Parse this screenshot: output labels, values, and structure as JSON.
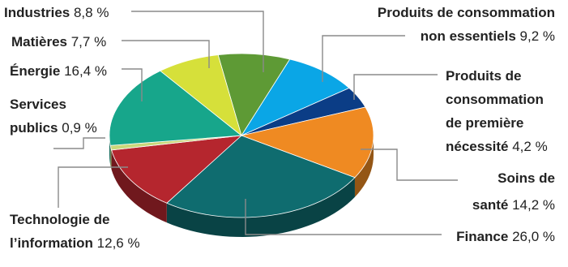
{
  "chart_data": {
    "type": "pie",
    "title": "",
    "unit": "%",
    "slices": [
      {
        "name_lines": [
          "Industries"
        ],
        "value_text": "8,8 %",
        "value": 8.8,
        "color": "#5e9a35"
      },
      {
        "name_lines": [
          "Produits de consommation",
          "non essentiels"
        ],
        "value_text": "9,2 %",
        "value": 9.2,
        "color": "#0aa6e6"
      },
      {
        "name_lines": [
          "Produits de",
          "consommation",
          "de première",
          "nécessité"
        ],
        "value_text": "4,2 %",
        "value": 4.2,
        "color": "#0b3d86"
      },
      {
        "name_lines": [
          "Soins de",
          "santé"
        ],
        "value_text": "14,2 %",
        "value": 14.2,
        "color": "#ef8a22"
      },
      {
        "name_lines": [
          "Finance"
        ],
        "value_text": "26,0 %",
        "value": 26.0,
        "color": "#0f6c6f"
      },
      {
        "name_lines": [
          "Technologie de",
          "l’information"
        ],
        "value_text": "12,6 %",
        "value": 12.6,
        "color": "#b5262e"
      },
      {
        "name_lines": [
          "Services",
          "publics"
        ],
        "value_text": "0,9 %",
        "value": 0.9,
        "color": "#c9d77a"
      },
      {
        "name_lines": [
          "Énergie"
        ],
        "value_text": "16,4 %",
        "value": 16.4,
        "color": "#17a68b"
      },
      {
        "name_lines": [
          "Matières"
        ],
        "value_text": "7,7 %",
        "value": 7.7,
        "color": "#d6e03a"
      }
    ]
  }
}
